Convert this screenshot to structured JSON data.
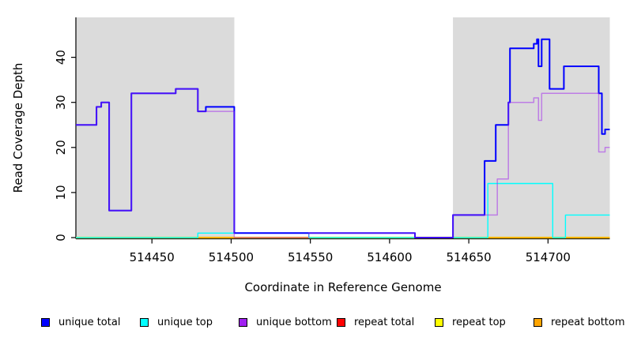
{
  "chart_data": {
    "type": "line",
    "title": "",
    "xlabel": "Coordinate in Reference Genome",
    "ylabel": "Read Coverage Depth",
    "xlim": [
      514402,
      514739
    ],
    "ylim": [
      0,
      49
    ],
    "xticks": [
      514450,
      514500,
      514550,
      514600,
      514650,
      514700
    ],
    "yticks": [
      0,
      10,
      20,
      30,
      40
    ],
    "grid": false,
    "legend_position": "bottom",
    "plot_background": "#FFFFFF",
    "shaded_region_color": "#DBDBDB",
    "shaded_regions": [
      {
        "x0": 514402,
        "x1": 514502
      },
      {
        "x0": 514640,
        "x1": 514739
      }
    ],
    "line_style": "step-after",
    "series": [
      {
        "name": "unique total",
        "color": "#0000FF",
        "points": [
          [
            514402,
            25
          ],
          [
            514415,
            29
          ],
          [
            514418,
            30
          ],
          [
            514423,
            6
          ],
          [
            514437,
            32
          ],
          [
            514465,
            33
          ],
          [
            514479,
            28
          ],
          [
            514484,
            29
          ],
          [
            514502,
            1
          ],
          [
            514616,
            0
          ],
          [
            514640,
            5
          ],
          [
            514660,
            17
          ],
          [
            514667,
            25
          ],
          [
            514675,
            30
          ],
          [
            514676,
            42
          ],
          [
            514691,
            43
          ],
          [
            514693,
            44
          ],
          [
            514694,
            38
          ],
          [
            514696,
            44
          ],
          [
            514701,
            33
          ],
          [
            514710,
            38
          ],
          [
            514732,
            32
          ],
          [
            514734,
            23
          ],
          [
            514736,
            24
          ]
        ]
      },
      {
        "name": "unique top",
        "color": "#00FFFF",
        "points": [
          [
            514402,
            0
          ],
          [
            514479,
            1
          ],
          [
            514549,
            0
          ],
          [
            514662,
            12
          ],
          [
            514703,
            0
          ],
          [
            514711,
            5
          ]
        ]
      },
      {
        "name": "unique bottom",
        "color": "#A020F0",
        "points": [
          [
            514402,
            25
          ],
          [
            514415,
            29
          ],
          [
            514418,
            30
          ],
          [
            514423,
            6
          ],
          [
            514437,
            32
          ],
          [
            514465,
            33
          ],
          [
            514479,
            28
          ],
          [
            514502,
            0
          ],
          [
            514549,
            1
          ],
          [
            514616,
            0
          ],
          [
            514640,
            5
          ],
          [
            514668,
            13
          ],
          [
            514675,
            30
          ],
          [
            514691,
            31
          ],
          [
            514694,
            26
          ],
          [
            514696,
            32
          ],
          [
            514732,
            19
          ],
          [
            514736,
            20
          ]
        ]
      },
      {
        "name": "repeat total",
        "color": "#FF0000",
        "points": [
          [
            514402,
            0
          ]
        ]
      },
      {
        "name": "repeat top",
        "color": "#FFFF00",
        "points": [
          [
            514402,
            0
          ]
        ]
      },
      {
        "name": "repeat bottom",
        "color": "#FFA500",
        "points": [
          [
            514402,
            0
          ]
        ]
      }
    ]
  }
}
